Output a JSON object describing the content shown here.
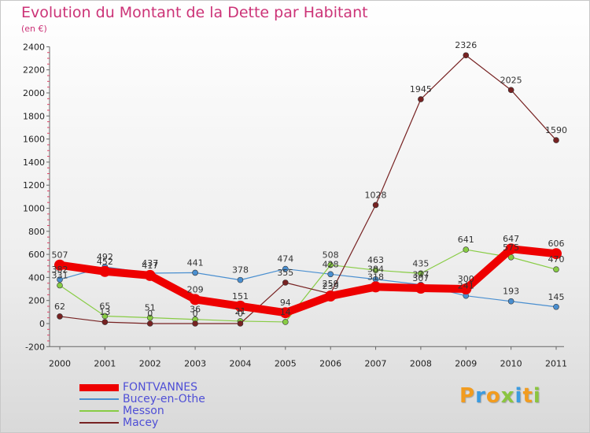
{
  "title": "Evolution du Montant de la Dette par Habitant",
  "subtitle": "(en €)",
  "logo": {
    "text": "Proxiti",
    "colors": [
      "#f29c1f",
      "#3b9be0",
      "#f29c1f",
      "#8bc53f",
      "#3b9be0",
      "#f29c1f",
      "#8bc53f"
    ]
  },
  "chart_data": {
    "type": "line",
    "title": "Evolution du Montant de la Dette par Habitant",
    "subtitle": "(en €)",
    "x": [
      "2000",
      "2001",
      "2002",
      "2003",
      "2004",
      "2005",
      "2006",
      "2007",
      "2008",
      "2009",
      "2010",
      "2011"
    ],
    "ylim": [
      -200,
      2400
    ],
    "yticks": [
      -200,
      0,
      200,
      400,
      600,
      800,
      1000,
      1200,
      1400,
      1600,
      1800,
      2000,
      2200,
      2400
    ],
    "grid": false,
    "legend": "bottom-left",
    "series": [
      {
        "name": "FONTVANNES",
        "color": "#ee0000",
        "width": 10,
        "values": [
          507,
          452,
          417,
          209,
          151,
          94,
          239,
          318,
          307,
          300,
          647,
          606
        ],
        "labels": [
          "507",
          "452",
          "417",
          "209",
          "151",
          "94",
          "239",
          "318",
          "307",
          "300",
          "647",
          "606"
        ]
      },
      {
        "name": "Bucey-en-Othe",
        "color": "#4a8fd0",
        "width": 1.2,
        "values": [
          382,
          492,
          437,
          441,
          378,
          474,
          428,
          384,
          337,
          241,
          193,
          145
        ],
        "labels": [
          "382",
          "492",
          "437",
          "441",
          "378",
          "474",
          "428",
          "384",
          "337",
          "241",
          "193",
          "145"
        ]
      },
      {
        "name": "Messon",
        "color": "#88cc44",
        "width": 1.2,
        "values": [
          331,
          65,
          51,
          36,
          21,
          14,
          508,
          463,
          435,
          641,
          575,
          470
        ],
        "labels": [
          "331",
          "65",
          "51",
          "36",
          "21",
          "14",
          "508",
          "463",
          "435",
          "641",
          "575",
          "470"
        ]
      },
      {
        "name": "Macey",
        "color": "#772222",
        "width": 1.2,
        "values": [
          62,
          13,
          0,
          0,
          0,
          355,
          259,
          1028,
          1945,
          2326,
          2025,
          1590
        ],
        "labels": [
          "62",
          "13",
          "0",
          "0",
          "0",
          "355",
          "259",
          "1028",
          "1945",
          "2326",
          "2025",
          "1590"
        ]
      }
    ]
  }
}
